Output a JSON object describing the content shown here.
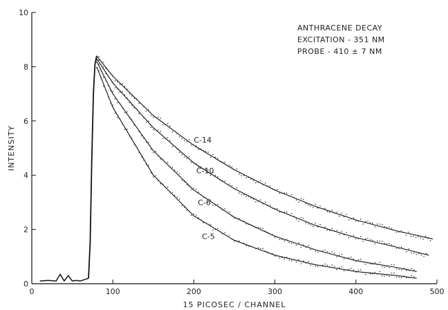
{
  "chart_data": {
    "type": "line",
    "xlabel": "15 PICOSEC / CHANNEL",
    "ylabel": "INTENSITY",
    "xlim": [
      0,
      500
    ],
    "ylim": [
      0,
      10
    ],
    "xticks": [
      0,
      100,
      200,
      300,
      400,
      500
    ],
    "yticks": [
      0,
      2,
      4,
      6,
      8,
      10
    ],
    "grid": false,
    "annotation": [
      "ANTHRACENE DECAY",
      "EXCITATION - 351 NM",
      "PROBE - 410 ± 7 NM"
    ],
    "baseline": {
      "x": [
        10,
        20,
        30,
        35,
        40,
        45,
        50,
        55,
        60,
        65,
        70
      ],
      "y": [
        0.1,
        0.12,
        0.1,
        0.35,
        0.1,
        0.3,
        0.1,
        0.12,
        0.1,
        0.15,
        0.2
      ]
    },
    "rise": {
      "x": [
        70,
        72,
        74,
        76,
        78,
        80
      ],
      "y": [
        0.2,
        1.5,
        4.5,
        7.0,
        8.1,
        8.4
      ]
    },
    "series": [
      {
        "name": "C-14",
        "x": [
          80,
          100,
          150,
          200,
          250,
          300,
          350,
          400,
          450,
          495
        ],
        "y": [
          8.4,
          7.65,
          6.2,
          5.1,
          4.2,
          3.45,
          2.85,
          2.35,
          1.95,
          1.65
        ]
      },
      {
        "name": "C-10",
        "x": [
          80,
          100,
          150,
          200,
          250,
          300,
          350,
          400,
          450,
          490
        ],
        "y": [
          8.3,
          7.4,
          5.75,
          4.45,
          3.5,
          2.75,
          2.15,
          1.7,
          1.35,
          1.05
        ]
      },
      {
        "name": "C-6",
        "x": [
          80,
          100,
          150,
          200,
          250,
          300,
          350,
          400,
          450,
          475
        ],
        "y": [
          8.2,
          7.0,
          4.9,
          3.45,
          2.45,
          1.75,
          1.25,
          0.85,
          0.6,
          0.45
        ]
      },
      {
        "name": "C-5",
        "x": [
          80,
          100,
          150,
          200,
          250,
          300,
          350,
          400,
          450,
          475
        ],
        "y": [
          8.0,
          6.5,
          4.0,
          2.5,
          1.6,
          1.05,
          0.7,
          0.45,
          0.3,
          0.2
        ]
      }
    ],
    "labels": [
      {
        "text": "C-14",
        "x": 200,
        "y": 5.2
      },
      {
        "text": "C-10",
        "x": 203,
        "y": 4.07
      },
      {
        "text": "C-6",
        "x": 205,
        "y": 2.9
      },
      {
        "text": "C-5",
        "x": 210,
        "y": 1.65
      }
    ]
  }
}
